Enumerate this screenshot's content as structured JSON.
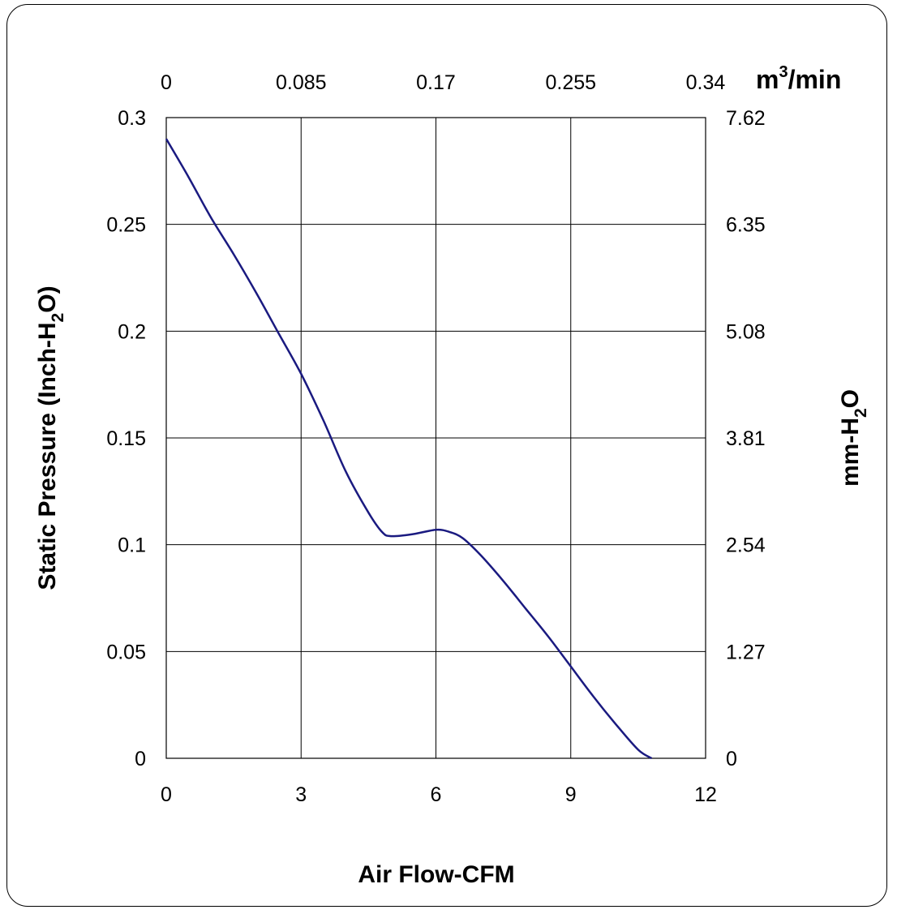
{
  "chart_data": {
    "type": "line",
    "xlabel": "Air Flow-CFM",
    "ylabel": "Static Pressure (Inch-H₂O)",
    "ylabel_parts": [
      "Static Pressure (Inch-H",
      "2",
      "O)"
    ],
    "y2label_parts": [
      "mm-H",
      "2",
      "O"
    ],
    "x2label_parts": [
      "m",
      "3",
      "/min"
    ],
    "xlim": [
      0,
      12
    ],
    "ylim": [
      0,
      0.3
    ],
    "x_ticks": [
      "0",
      "3",
      "6",
      "9",
      "12"
    ],
    "y_ticks": [
      "0",
      "0.05",
      "0.1",
      "0.15",
      "0.2",
      "0.25",
      "0.3"
    ],
    "x2_ticks": [
      "0",
      "0.085",
      "0.17",
      "0.255",
      "0.34"
    ],
    "y2_ticks": [
      "0",
      "1.27",
      "2.54",
      "3.81",
      "5.08",
      "6.35",
      "7.62"
    ],
    "grid": true,
    "series": [
      {
        "color": "#1a1a80",
        "x": [
          0,
          0.5,
          1,
          1.5,
          2,
          2.5,
          3,
          3.5,
          4,
          4.5,
          4.8,
          5,
          5.5,
          6,
          6.3,
          6.6,
          7,
          7.5,
          8,
          8.5,
          9,
          9.5,
          10,
          10.5,
          10.8
        ],
        "y": [
          0.29,
          0.272,
          0.253,
          0.236,
          0.218,
          0.199,
          0.18,
          0.158,
          0.134,
          0.115,
          0.106,
          0.104,
          0.105,
          0.107,
          0.106,
          0.103,
          0.095,
          0.083,
          0.07,
          0.057,
          0.043,
          0.029,
          0.016,
          0.004,
          0
        ]
      }
    ]
  }
}
